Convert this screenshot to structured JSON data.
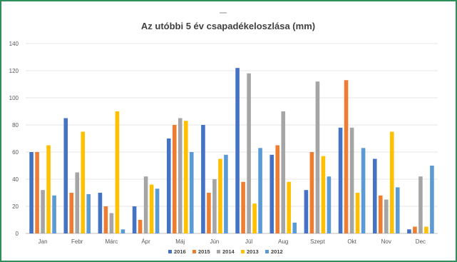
{
  "chart_data": {
    "type": "bar",
    "title": "Az utóbbi 5 év csapadékeloszlása (mm)",
    "xlabel": "",
    "ylabel": "",
    "ylim": [
      0,
      140
    ],
    "yticks": [
      0,
      20,
      40,
      60,
      80,
      100,
      120,
      140
    ],
    "grid": true,
    "legend_position": "bottom",
    "categories": [
      "Jan",
      "Febr",
      "Márc",
      "Ápr",
      "Máj",
      "Jún",
      "Júl",
      "Aug",
      "Szept",
      "Okt",
      "Nov",
      "Dec"
    ],
    "series": [
      {
        "name": "2016",
        "color": "#4472c4",
        "values": [
          60,
          85,
          30,
          20,
          70,
          80,
          122,
          58,
          32,
          78,
          55,
          3
        ]
      },
      {
        "name": "2015",
        "color": "#ed7d31",
        "values": [
          60,
          30,
          20,
          10,
          80,
          30,
          38,
          65,
          60,
          113,
          28,
          5
        ]
      },
      {
        "name": "2014",
        "color": "#a5a5a5",
        "values": [
          32,
          45,
          15,
          42,
          85,
          40,
          118,
          90,
          112,
          78,
          25,
          42
        ]
      },
      {
        "name": "2013",
        "color": "#ffc000",
        "values": [
          65,
          75,
          90,
          36,
          83,
          55,
          22,
          38,
          57,
          30,
          75,
          5
        ]
      },
      {
        "name": "2012",
        "color": "#5b9bd5",
        "values": [
          28,
          29,
          3,
          33,
          60,
          58,
          63,
          8,
          42,
          63,
          34,
          50
        ]
      }
    ]
  },
  "colors": {
    "frame_border": "#2f8f5b",
    "gridline": "#e4e4e4",
    "text": "#595959"
  }
}
